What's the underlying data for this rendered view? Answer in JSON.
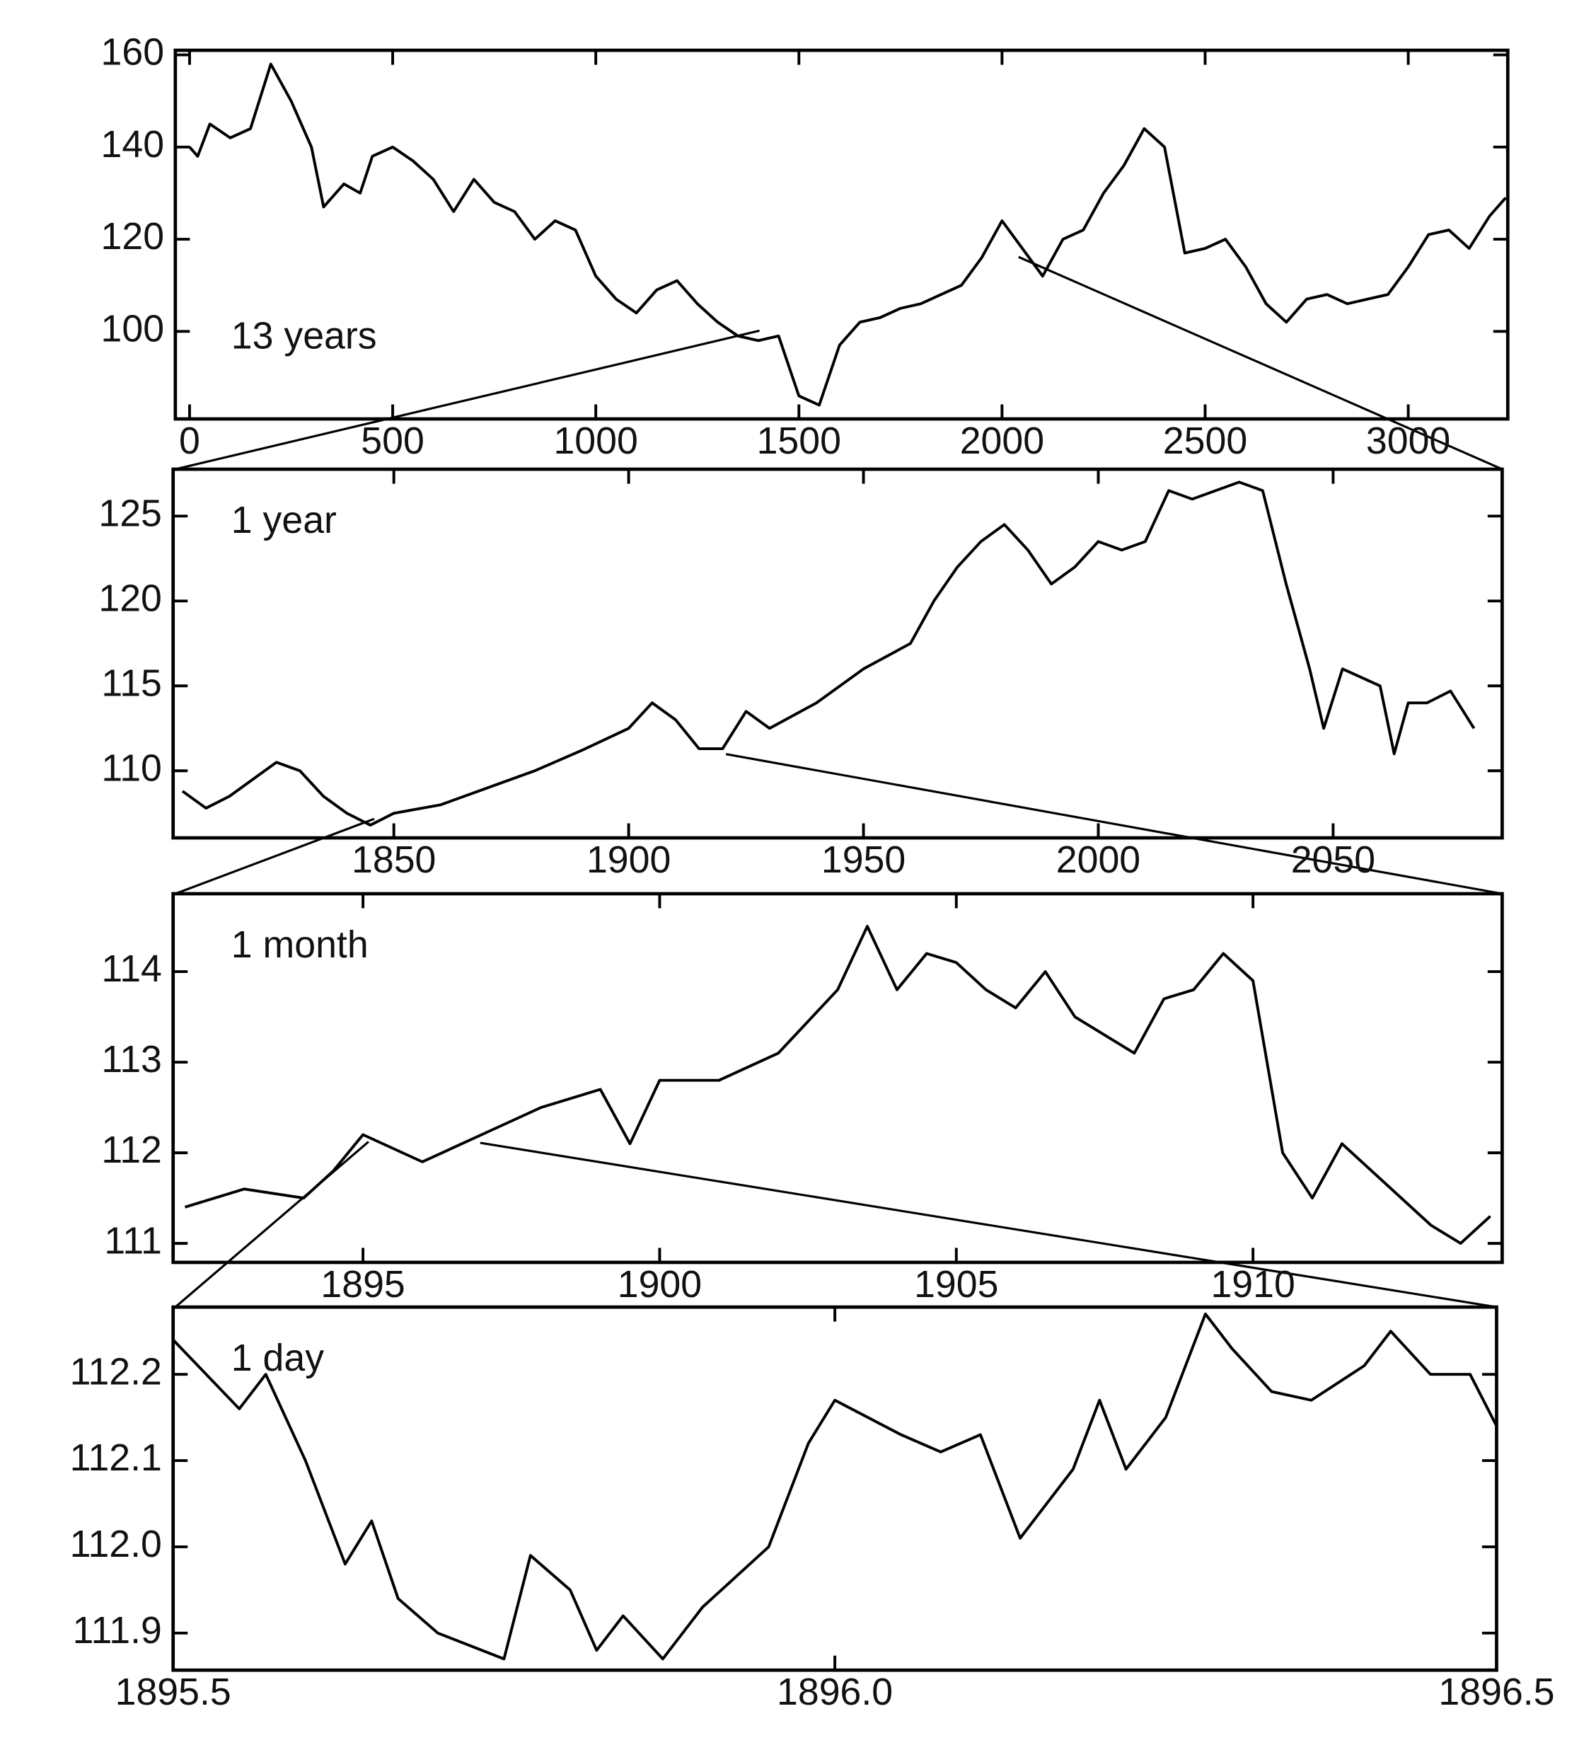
{
  "chart_data": [
    {
      "type": "line",
      "annotation": "13 years",
      "color": "#000000",
      "x": [
        0,
        20,
        50,
        100,
        150,
        200,
        250,
        300,
        330,
        380,
        420,
        450,
        500,
        550,
        600,
        650,
        700,
        750,
        800,
        850,
        900,
        950,
        1000,
        1050,
        1100,
        1150,
        1200,
        1250,
        1300,
        1350,
        1400,
        1450,
        1500,
        1550,
        1600,
        1650,
        1700,
        1750,
        1800,
        1850,
        1900,
        1950,
        2000,
        2050,
        2100,
        2150,
        2200,
        2250,
        2300,
        2350,
        2400,
        2450,
        2500,
        2550,
        2600,
        2650,
        2700,
        2750,
        2800,
        2850,
        2900,
        2950,
        3000,
        3050,
        3100,
        3150,
        3200,
        3240
      ],
      "values": [
        140,
        138,
        145,
        142,
        144,
        158,
        150,
        140,
        127,
        132,
        130,
        138,
        140,
        137,
        133,
        126,
        133,
        128,
        126,
        120,
        124,
        122,
        112,
        107,
        104,
        109,
        111,
        106,
        102,
        99,
        98,
        99,
        86,
        84,
        97,
        102,
        103,
        105,
        106,
        108,
        110,
        116,
        124,
        118,
        112,
        120,
        122,
        130,
        136,
        144,
        140,
        117,
        118,
        120,
        114,
        106,
        102,
        107,
        108,
        106,
        107,
        108,
        114,
        121,
        122,
        118,
        125,
        129
      ],
      "xlim": [
        -35,
        3245
      ],
      "ylim": [
        81,
        161
      ],
      "xticks": [
        0,
        500,
        1000,
        1500,
        2000,
        2500,
        3000
      ],
      "yticks": [
        100,
        120,
        140,
        160
      ]
    },
    {
      "type": "line",
      "annotation": "1 year",
      "color": "#000000",
      "x": [
        1805,
        1810,
        1815,
        1820,
        1825,
        1830,
        1835,
        1840,
        1845,
        1850,
        1860,
        1870,
        1880,
        1890,
        1900,
        1905,
        1910,
        1915,
        1920,
        1925,
        1930,
        1940,
        1950,
        1960,
        1965,
        1970,
        1975,
        1980,
        1985,
        1990,
        1995,
        2000,
        2005,
        2010,
        2015,
        2020,
        2025,
        2030,
        2035,
        2040,
        2045,
        2048,
        2052,
        2060,
        2063,
        2066,
        2070,
        2075,
        2080
      ],
      "values": [
        108.8,
        107.8,
        108.5,
        109.5,
        110.5,
        110.0,
        108.5,
        107.5,
        106.8,
        107.5,
        108,
        109,
        110,
        111.2,
        112.5,
        114,
        113,
        111.3,
        111.3,
        113.5,
        112.5,
        114,
        116,
        117.5,
        120,
        122,
        123.5,
        124.5,
        123,
        121,
        122,
        123.5,
        123,
        123.5,
        126.5,
        126,
        126.5,
        127,
        126.5,
        121,
        116,
        112.5,
        116,
        115,
        111,
        114,
        114,
        114.7,
        112.5
      ],
      "xlim": [
        1803,
        2086
      ],
      "ylim": [
        106.05,
        127.76
      ],
      "xticks": [
        1850,
        1900,
        1950,
        2000,
        2050
      ],
      "yticks": [
        110,
        115,
        120,
        125
      ]
    },
    {
      "type": "line",
      "annotation": "1 month",
      "color": "#000000",
      "x": [
        1892,
        1893,
        1894,
        1894.5,
        1895,
        1896,
        1897,
        1898,
        1899,
        1899.5,
        1900,
        1901,
        1902,
        1903,
        1903.5,
        1904,
        1904.5,
        1905,
        1905.5,
        1906,
        1906.5,
        1907,
        1908,
        1908.5,
        1909,
        1909.5,
        1910,
        1910.5,
        1911,
        1911.5,
        1912,
        1913,
        1913.5,
        1914
      ],
      "values": [
        111.4,
        111.6,
        111.5,
        111.8,
        112.2,
        111.9,
        112.2,
        112.5,
        112.7,
        112.1,
        112.8,
        112.8,
        113.1,
        113.8,
        114.5,
        113.8,
        114.2,
        114.1,
        113.8,
        113.6,
        114.0,
        113.5,
        113.1,
        113.7,
        113.8,
        114.2,
        113.9,
        112.0,
        111.5,
        112.1,
        111.8,
        111.2,
        111.0,
        111.3
      ],
      "xlim": [
        1891.8,
        1914.2
      ],
      "ylim": [
        110.79,
        114.86
      ],
      "xticks": [
        1895,
        1900,
        1905,
        1910
      ],
      "yticks": [
        111,
        112,
        113,
        114
      ]
    },
    {
      "type": "line",
      "annotation": "1 day",
      "color": "#000000",
      "x": [
        1895.5,
        1895.55,
        1895.57,
        1895.6,
        1895.63,
        1895.65,
        1895.67,
        1895.7,
        1895.75,
        1895.77,
        1895.8,
        1895.82,
        1895.84,
        1895.87,
        1895.9,
        1895.95,
        1895.98,
        1896.0,
        1896.05,
        1896.08,
        1896.11,
        1896.14,
        1896.18,
        1896.2,
        1896.22,
        1896.25,
        1896.28,
        1896.3,
        1896.33,
        1896.36,
        1896.4,
        1896.42,
        1896.45,
        1896.48,
        1896.5
      ],
      "values": [
        112.24,
        112.16,
        112.2,
        112.1,
        111.98,
        112.03,
        111.94,
        111.9,
        111.87,
        111.99,
        111.95,
        111.88,
        111.92,
        111.87,
        111.93,
        112.0,
        112.12,
        112.17,
        112.13,
        112.11,
        112.13,
        112.01,
        112.09,
        112.17,
        112.09,
        112.15,
        112.27,
        112.23,
        112.18,
        112.17,
        112.21,
        112.25,
        112.2,
        112.2,
        112.14
      ],
      "xlim": [
        1895.5,
        1896.5
      ],
      "ylim": [
        111.857,
        112.278
      ],
      "xticks": [
        1895.5,
        {
          "value": 1896,
          "label": "1896.0"
        },
        1896.5
      ],
      "yticks": [
        111.9,
        {
          "value": 112,
          "label": "112.0"
        },
        112.1,
        112.2
      ]
    }
  ]
}
